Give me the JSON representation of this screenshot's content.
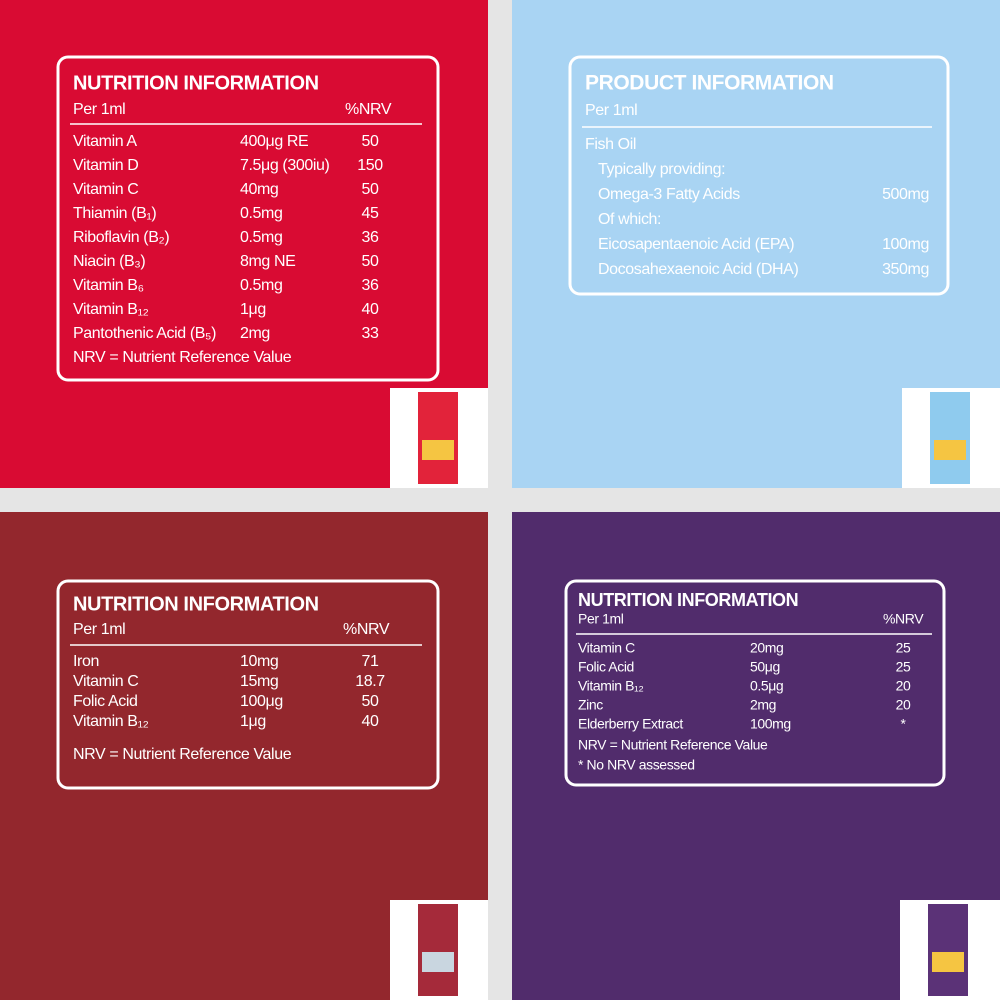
{
  "panels": [
    {
      "title": "NUTRITION INFORMATION",
      "subtitle": "Per 1ml",
      "nrv_header": "%NRV",
      "rows": [
        [
          "Vitamin A",
          "400μg RE",
          "50"
        ],
        [
          "Vitamin D",
          "7.5μg (300iu)",
          "150"
        ],
        [
          "Vitamin C",
          "40mg",
          "50"
        ],
        [
          "Thiamin (B₁)",
          "0.5mg",
          "45"
        ],
        [
          "Riboflavin (B₂)",
          "0.5mg",
          "36"
        ],
        [
          "Niacin (B₃)",
          "8mg NE",
          "50"
        ],
        [
          "Vitamin B₆",
          "0.5mg",
          "36"
        ],
        [
          "Vitamin B₁₂",
          "1μg",
          "40"
        ],
        [
          "Pantothenic Acid (B₅)",
          "2mg",
          "33"
        ]
      ],
      "footer": [
        "NRV = Nutrient Reference Value"
      ]
    },
    {
      "title": "PRODUCT INFORMATION",
      "subtitle": "Per 1ml",
      "rows": [
        [
          "Fish Oil"
        ],
        [
          "Typically providing:"
        ],
        [
          "Omega-3 Fatty Acids",
          "500mg"
        ],
        [
          "Of which:"
        ],
        [
          "Eicosapentaenoic Acid (EPA)",
          "100mg"
        ],
        [
          "Docosahexaenoic Acid (DHA)",
          "350mg"
        ]
      ]
    },
    {
      "title": "NUTRITION INFORMATION",
      "subtitle": "Per 1ml",
      "nrv_header": "%NRV",
      "rows": [
        [
          "Iron",
          "10mg",
          "71"
        ],
        [
          "Vitamin C",
          "15mg",
          "18.7"
        ],
        [
          "Folic Acid",
          "100μg",
          "50"
        ],
        [
          "Vitamin B₁₂",
          "1μg",
          "40"
        ]
      ],
      "footer": [
        "NRV = Nutrient Reference Value"
      ]
    },
    {
      "title": "NUTRITION INFORMATION",
      "subtitle": "Per 1ml",
      "nrv_header": "%NRV",
      "rows": [
        [
          "Vitamin C",
          "20mg",
          "25"
        ],
        [
          "Folic Acid",
          "50μg",
          "25"
        ],
        [
          "Vitamin B₁₂",
          "0.5μg",
          "20"
        ],
        [
          "Zinc",
          "2mg",
          "20"
        ],
        [
          "Elderberry Extract",
          "100mg",
          "*"
        ]
      ],
      "footer": [
        "NRV = Nutrient Reference Value",
        "* No NRV assessed"
      ]
    }
  ]
}
